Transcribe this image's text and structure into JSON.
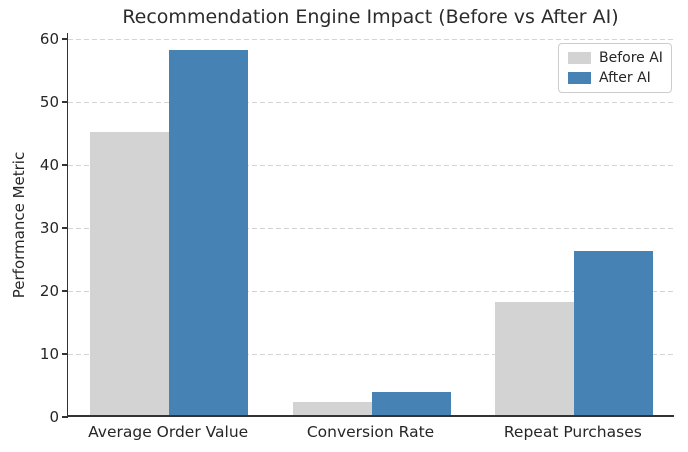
{
  "chart_data": {
    "type": "bar",
    "title": "Recommendation Engine Impact (Before vs After AI)",
    "xlabel": "",
    "ylabel": "Performance Metric",
    "categories": [
      "Average Order Value",
      "Conversion Rate",
      "Repeat Purchases"
    ],
    "series": [
      {
        "name": "Before AI",
        "color": "#d3d3d3",
        "values": [
          45,
          2.1,
          18
        ]
      },
      {
        "name": "After AI",
        "color": "#4682b4",
        "values": [
          58,
          3.6,
          26
        ]
      }
    ],
    "yticks": [
      0,
      10,
      20,
      30,
      40,
      50,
      60
    ],
    "ylim": [
      0,
      61
    ],
    "grid": "horizontal-dashed",
    "legend_position": "upper-right",
    "spines": [
      "left",
      "bottom"
    ]
  },
  "colors": {
    "grid": "#d4d4d4",
    "spine": "#333333",
    "text": "#262626",
    "background": "#ffffff"
  }
}
